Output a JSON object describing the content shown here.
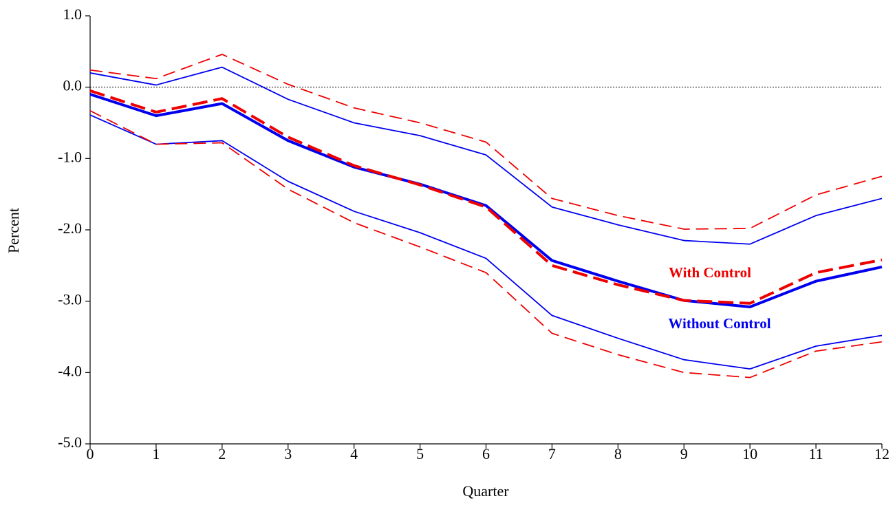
{
  "chart_data": {
    "type": "line",
    "x_label": "Quarter",
    "y_label": "Percent",
    "x": [
      0,
      1,
      2,
      3,
      4,
      5,
      6,
      7,
      8,
      9,
      10,
      11,
      12
    ],
    "xlim": [
      0,
      12
    ],
    "xticks": [
      0,
      1,
      2,
      3,
      4,
      5,
      6,
      7,
      8,
      9,
      10,
      11,
      12
    ],
    "ylim": [
      -5,
      1
    ],
    "yticks": [
      {
        "value": -5,
        "label": "-5.0"
      },
      {
        "value": -4,
        "label": "-4.0"
      },
      {
        "value": -3,
        "label": "-3.0"
      },
      {
        "value": -2,
        "label": "-2.0"
      },
      {
        "value": -1,
        "label": "-1.0"
      },
      {
        "value": 0,
        "label": "0.0"
      },
      {
        "value": 1,
        "label": "1.0"
      }
    ],
    "hline": 0,
    "series": [
      {
        "color": "#0000ee",
        "width": 1.8,
        "dashed": false,
        "values": [
          0.2,
          0.03,
          0.28,
          -0.17,
          -0.5,
          -0.68,
          -0.95,
          -1.68,
          -1.93,
          -2.15,
          -2.2,
          -1.8,
          -1.56
        ]
      },
      {
        "color": "#0000ee",
        "width": 1.8,
        "dashed": false,
        "values": [
          -0.39,
          -0.8,
          -0.75,
          -1.32,
          -1.74,
          -2.04,
          -2.4,
          -3.2,
          -3.52,
          -3.82,
          -3.95,
          -3.63,
          -3.48
        ]
      },
      {
        "color": "#ee0000",
        "width": 1.8,
        "dashed": true,
        "values": [
          0.24,
          0.12,
          0.46,
          0.04,
          -0.29,
          -0.5,
          -0.77,
          -1.56,
          -1.8,
          -1.99,
          -1.98,
          -1.51,
          -1.25
        ]
      },
      {
        "color": "#ee0000",
        "width": 1.8,
        "dashed": true,
        "values": [
          -0.33,
          -0.8,
          -0.78,
          -1.43,
          -1.9,
          -2.24,
          -2.6,
          -3.45,
          -3.75,
          -4.0,
          -4.07,
          -3.7,
          -3.57
        ]
      },
      {
        "name": "Without Control",
        "color": "#0000ee",
        "width": 4,
        "dashed": false,
        "values": [
          -0.1,
          -0.4,
          -0.23,
          -0.75,
          -1.12,
          -1.36,
          -1.66,
          -2.43,
          -2.72,
          -2.99,
          -3.08,
          -2.72,
          -2.52
        ]
      },
      {
        "name": "With Control",
        "color": "#ee0000",
        "width": 4,
        "dashed": true,
        "values": [
          -0.05,
          -0.35,
          -0.16,
          -0.7,
          -1.1,
          -1.37,
          -1.68,
          -2.5,
          -2.77,
          -2.99,
          -3.03,
          -2.6,
          -2.42
        ]
      }
    ]
  }
}
